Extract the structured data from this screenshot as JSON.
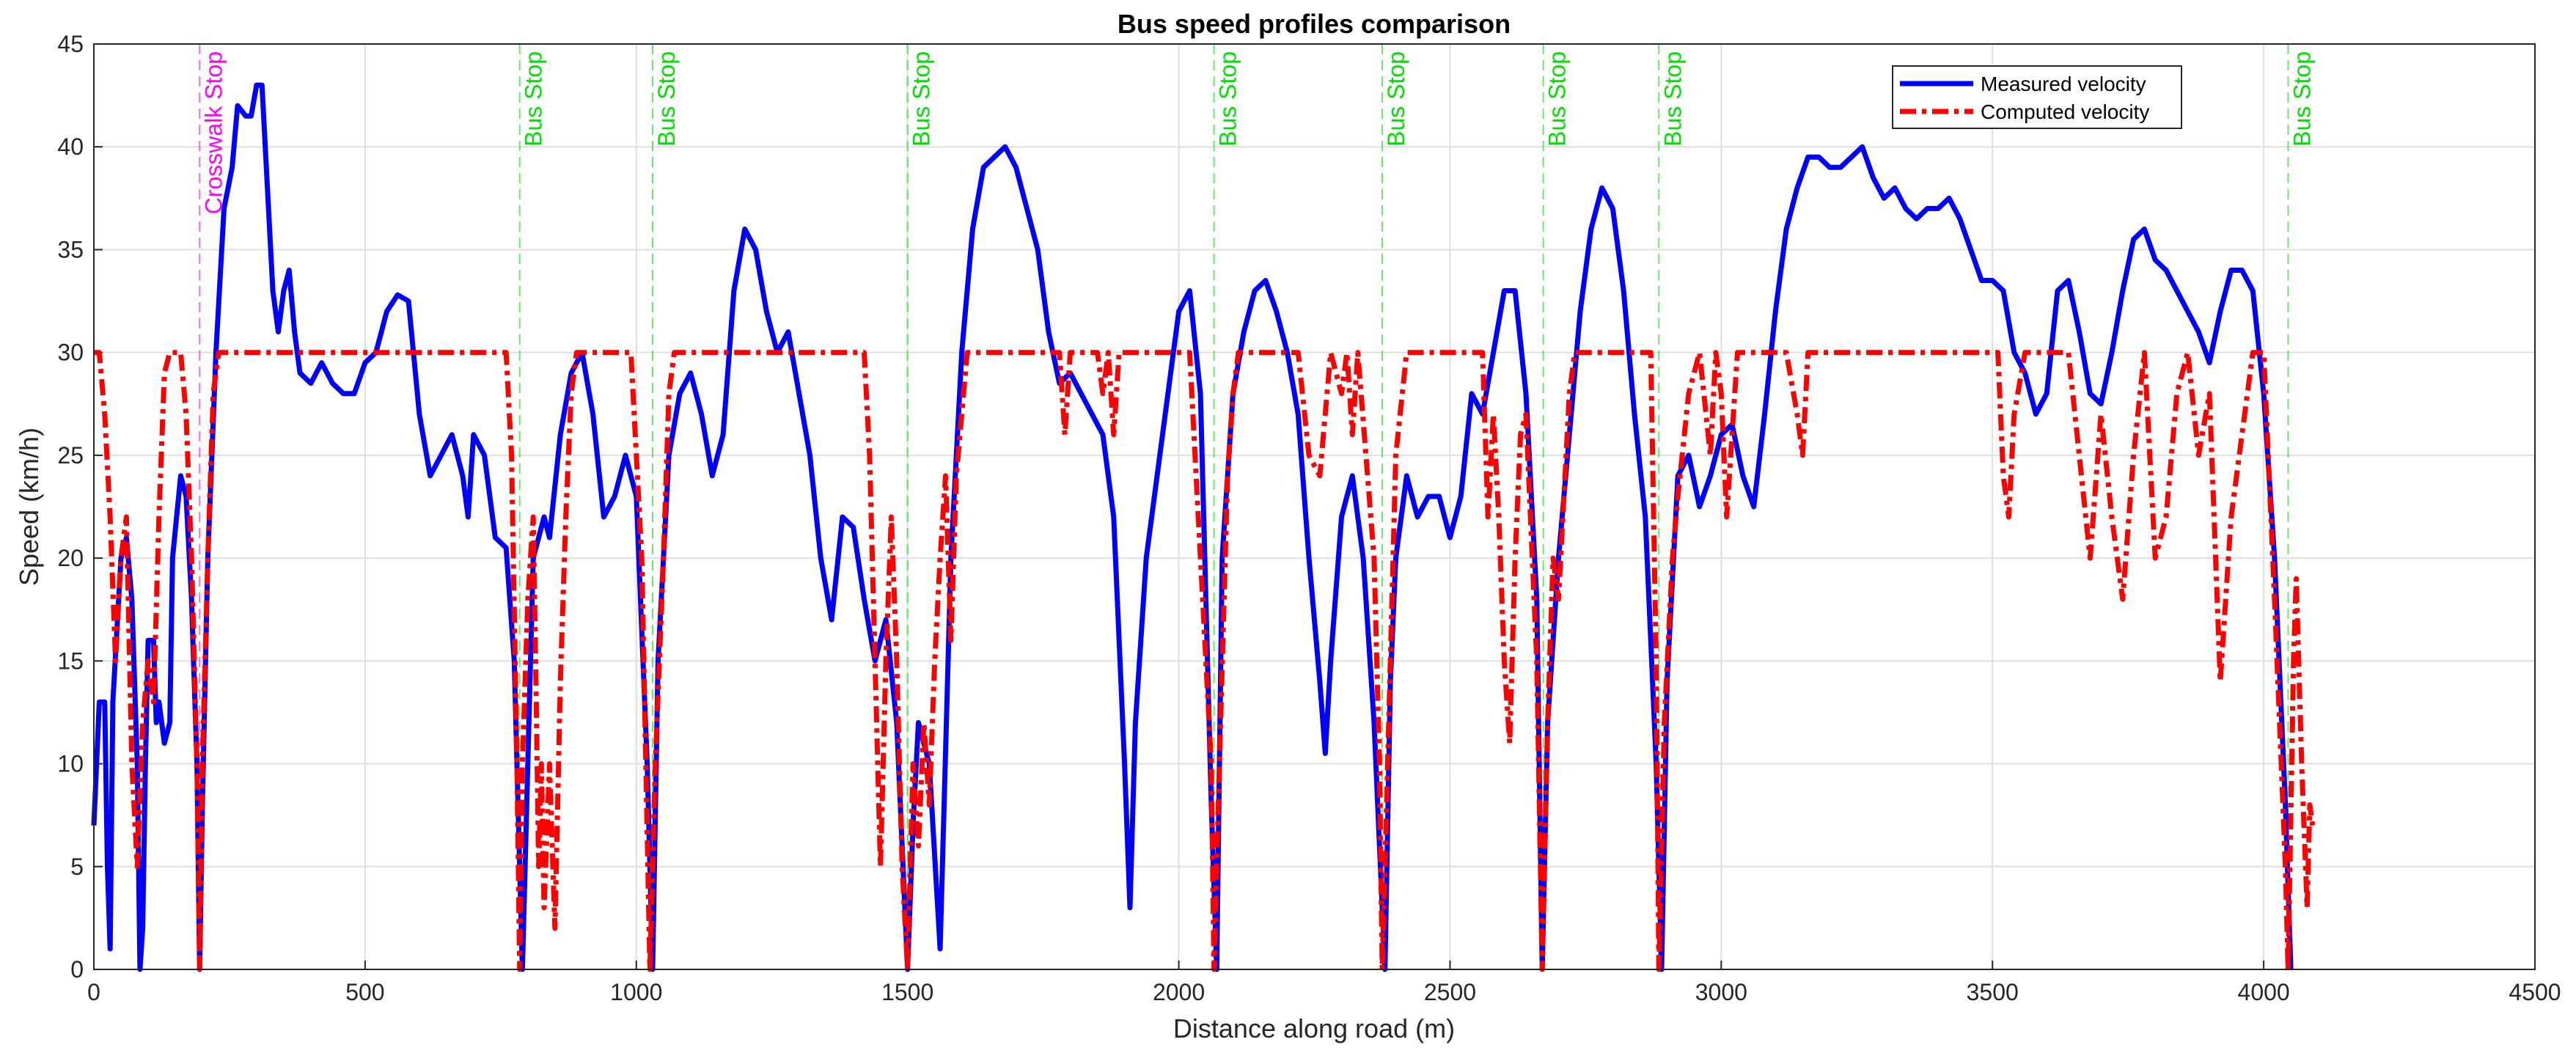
{
  "chart_data": {
    "type": "line",
    "title": "Bus speed profiles comparison",
    "x_label": "Distance along road (m)",
    "y_label": "Speed (km/h)",
    "xlim": [
      0,
      4500
    ],
    "ylim": [
      0,
      45
    ],
    "xticks": [
      0,
      500,
      1000,
      1500,
      2000,
      2500,
      3000,
      3500,
      4000,
      4500
    ],
    "yticks": [
      0,
      5,
      10,
      15,
      20,
      25,
      30,
      35,
      40,
      45
    ],
    "grid": true,
    "legend": "upper right",
    "series": [
      {
        "name": "Measured velocity",
        "color": "#0000ff",
        "line_style": "solid",
        "x": [
          0,
          10,
          20,
          25,
          30,
          35,
          50,
          60,
          70,
          80,
          85,
          90,
          95,
          100,
          110,
          115,
          120,
          130,
          140,
          145,
          160,
          170,
          180,
          190,
          195,
          200,
          210,
          225,
          240,
          255,
          265,
          280,
          290,
          300,
          310,
          320,
          330,
          340,
          350,
          360,
          370,
          380,
          400,
          420,
          440,
          460,
          480,
          500,
          520,
          540,
          560,
          580,
          600,
          620,
          640,
          660,
          680,
          690,
          700,
          720,
          740,
          760,
          775,
          785,
          790,
          800,
          810,
          830,
          840,
          860,
          880,
          900,
          920,
          940,
          960,
          980,
          1000,
          1020,
          1030,
          1040,
          1060,
          1080,
          1100,
          1120,
          1140,
          1160,
          1180,
          1200,
          1220,
          1240,
          1260,
          1280,
          1300,
          1320,
          1340,
          1360,
          1380,
          1400,
          1420,
          1440,
          1460,
          1480,
          1500,
          1510,
          1520,
          1540,
          1560,
          1580,
          1600,
          1620,
          1640,
          1660,
          1680,
          1700,
          1720,
          1740,
          1760,
          1780,
          1800,
          1820,
          1840,
          1860,
          1880,
          1900,
          1910,
          1920,
          1940,
          1960,
          1980,
          2000,
          2020,
          2040,
          2060,
          2070,
          2080,
          2100,
          2120,
          2140,
          2160,
          2180,
          2200,
          2220,
          2240,
          2260,
          2270,
          2280,
          2300,
          2320,
          2340,
          2360,
          2380,
          2390,
          2400,
          2420,
          2440,
          2460,
          2480,
          2500,
          2520,
          2540,
          2560,
          2580,
          2600,
          2620,
          2640,
          2660,
          2670,
          2680,
          2700,
          2720,
          2740,
          2760,
          2780,
          2800,
          2820,
          2840,
          2860,
          2880,
          2890,
          2900,
          2920,
          2940,
          2960,
          2980,
          3000,
          3020,
          3040,
          3060,
          3080,
          3100,
          3120,
          3140,
          3160,
          3180,
          3200,
          3220,
          3240,
          3260,
          3280,
          3300,
          3320,
          3340,
          3360,
          3380,
          3400,
          3420,
          3440,
          3460,
          3480,
          3500,
          3520,
          3540,
          3560,
          3580,
          3600,
          3620,
          3640,
          3660,
          3680,
          3700,
          3720,
          3740,
          3760,
          3780,
          3800,
          3820,
          3840,
          3860,
          3880,
          3900,
          3920,
          3940,
          3960,
          3980,
          4000,
          4020,
          4040,
          4050
        ],
        "values": [
          7,
          13,
          13,
          5,
          1,
          13,
          20,
          21,
          18,
          10,
          0,
          2,
          10,
          16,
          16,
          12,
          13,
          11,
          12,
          20,
          24,
          23,
          18,
          10,
          0,
          8,
          20,
          30,
          37,
          39,
          42,
          41.5,
          41.5,
          43,
          43,
          38,
          33,
          31,
          33,
          34,
          31,
          29,
          28.5,
          29.5,
          28.5,
          28,
          28,
          29.5,
          30,
          32,
          32.8,
          32.5,
          27,
          24,
          25,
          26,
          24,
          22,
          26,
          25,
          21,
          20.5,
          15,
          5,
          0,
          10,
          20,
          22,
          21,
          26,
          29,
          30,
          27,
          22,
          23,
          25,
          23,
          10,
          0,
          15,
          25,
          28,
          29,
          27,
          24,
          26,
          33,
          36,
          35,
          32,
          30,
          31,
          28,
          25,
          20,
          17,
          22,
          21.5,
          18,
          15,
          17,
          12,
          0,
          7,
          12,
          10,
          1,
          20,
          30,
          36,
          39,
          39.5,
          40,
          39,
          37,
          35,
          31,
          28.5,
          29,
          28,
          27,
          26,
          22,
          10,
          3,
          12,
          20,
          24,
          28,
          32,
          33,
          28,
          8,
          0,
          20,
          28,
          31,
          33,
          33.5,
          32,
          30,
          27,
          20,
          14,
          10.5,
          15,
          22,
          24,
          20,
          12,
          0,
          14,
          20,
          24,
          22,
          23,
          23,
          21,
          23,
          28,
          27,
          30,
          33,
          33,
          28,
          18,
          0,
          12,
          20,
          26,
          32,
          36,
          38,
          37,
          33,
          27,
          22,
          10,
          0,
          14,
          24,
          25,
          22.5,
          24,
          26,
          26.5,
          24,
          22.5,
          27,
          32,
          36,
          38,
          39.5,
          39.5,
          39,
          39,
          39.5,
          40,
          38.5,
          37.5,
          38,
          37,
          36.5,
          37,
          37,
          37.5,
          36.5,
          35,
          33.5,
          33.5,
          33,
          30,
          29,
          27,
          28,
          33,
          33.5,
          31,
          28,
          27.5,
          30,
          33,
          35.5,
          36,
          34.5,
          34,
          33,
          32,
          31,
          29.5,
          32,
          34,
          34,
          33,
          28,
          20,
          8,
          0
        ]
      },
      {
        "name": "Computed velocity",
        "color": "#ff0000",
        "line_style": "dashed",
        "x": [
          0,
          10,
          20,
          30,
          40,
          50,
          60,
          70,
          80,
          90,
          100,
          110,
          120,
          130,
          140,
          160,
          170,
          180,
          190,
          195,
          200,
          210,
          220,
          230,
          760,
          770,
          780,
          785,
          790,
          800,
          810,
          815,
          820,
          825,
          830,
          840,
          850,
          860,
          870,
          880,
          890,
          990,
          1010,
          1025,
          1035,
          1050,
          1060,
          1070,
          1420,
          1430,
          1440,
          1450,
          1460,
          1470,
          1480,
          1490,
          1500,
          1510,
          1520,
          1530,
          1540,
          1550,
          1560,
          1570,
          1580,
          1590,
          1610,
          1780,
          1790,
          1800,
          1850,
          1860,
          1870,
          1880,
          1890,
          2020,
          2040,
          2060,
          2065,
          2075,
          2090,
          2100,
          2110,
          2220,
          2240,
          2260,
          2280,
          2300,
          2310,
          2320,
          2330,
          2360,
          2370,
          2375,
          2385,
          2400,
          2420,
          2560,
          2570,
          2580,
          2590,
          2600,
          2610,
          2620,
          2630,
          2640,
          2660,
          2670,
          2680,
          2690,
          2700,
          2720,
          2730,
          2870,
          2880,
          2885,
          2895,
          2910,
          2920,
          2940,
          2960,
          2980,
          2990,
          3000,
          3010,
          3020,
          3030,
          3120,
          3140,
          3150,
          3160,
          3510,
          3520,
          3530,
          3540,
          3560,
          3640,
          3660,
          3680,
          3700,
          3720,
          3740,
          3760,
          3780,
          3800,
          3820,
          3840,
          3860,
          3880,
          3900,
          3920,
          3940,
          3960,
          3980,
          4000,
          4010,
          4020,
          4040,
          4045,
          4055,
          4060,
          4070,
          4080,
          4085,
          4090
        ],
        "values": [
          30,
          30,
          27,
          22,
          15,
          20,
          22,
          10,
          5,
          12,
          15,
          13,
          22,
          29,
          30,
          30,
          27,
          20,
          10,
          0,
          10,
          20,
          28,
          30,
          30,
          25,
          10,
          0,
          10,
          18,
          22,
          14,
          5,
          10,
          3,
          10,
          2,
          14,
          22,
          28,
          30,
          30,
          20,
          0,
          10,
          20,
          28,
          30,
          30,
          25,
          15,
          5,
          15,
          22,
          15,
          5,
          0,
          10,
          6,
          12,
          8,
          15,
          20,
          24,
          16,
          24,
          30,
          30,
          26,
          30,
          30,
          28,
          30,
          26,
          30,
          30,
          20,
          10,
          0,
          10,
          24,
          28,
          30,
          30,
          25,
          24,
          30,
          28,
          30,
          26,
          30,
          20,
          10,
          0,
          10,
          25,
          30,
          30,
          22,
          27,
          22,
          15,
          11,
          20,
          26,
          27,
          15,
          0,
          12,
          20,
          18,
          28,
          30,
          30,
          15,
          0,
          12,
          20,
          23,
          28,
          30,
          25,
          30,
          28,
          22,
          26,
          30,
          30,
          27,
          25,
          30,
          30,
          24,
          22,
          27,
          30,
          30,
          25,
          20,
          27,
          22,
          18,
          25,
          30,
          20,
          22,
          28,
          30,
          25,
          28,
          14,
          22,
          26,
          30,
          30,
          24,
          18,
          5,
          0,
          15,
          19,
          10,
          3,
          8,
          7
        ]
      }
    ],
    "annotations": [
      {
        "x": 195,
        "label": "Crosswalk Stop",
        "color": "#ff00ff"
      },
      {
        "x": 785,
        "label": "Bus Stop",
        "color": "#00e000"
      },
      {
        "x": 1030,
        "label": "Bus Stop",
        "color": "#00e000"
      },
      {
        "x": 1500,
        "label": "Bus Stop",
        "color": "#00e000"
      },
      {
        "x": 2065,
        "label": "Bus Stop",
        "color": "#00e000"
      },
      {
        "x": 2375,
        "label": "Bus Stop",
        "color": "#00e000"
      },
      {
        "x": 2672,
        "label": "Bus Stop",
        "color": "#00e000"
      },
      {
        "x": 2885,
        "label": "Bus Stop",
        "color": "#00e000"
      },
      {
        "x": 4045,
        "label": "Bus Stop",
        "color": "#00e000"
      }
    ]
  }
}
